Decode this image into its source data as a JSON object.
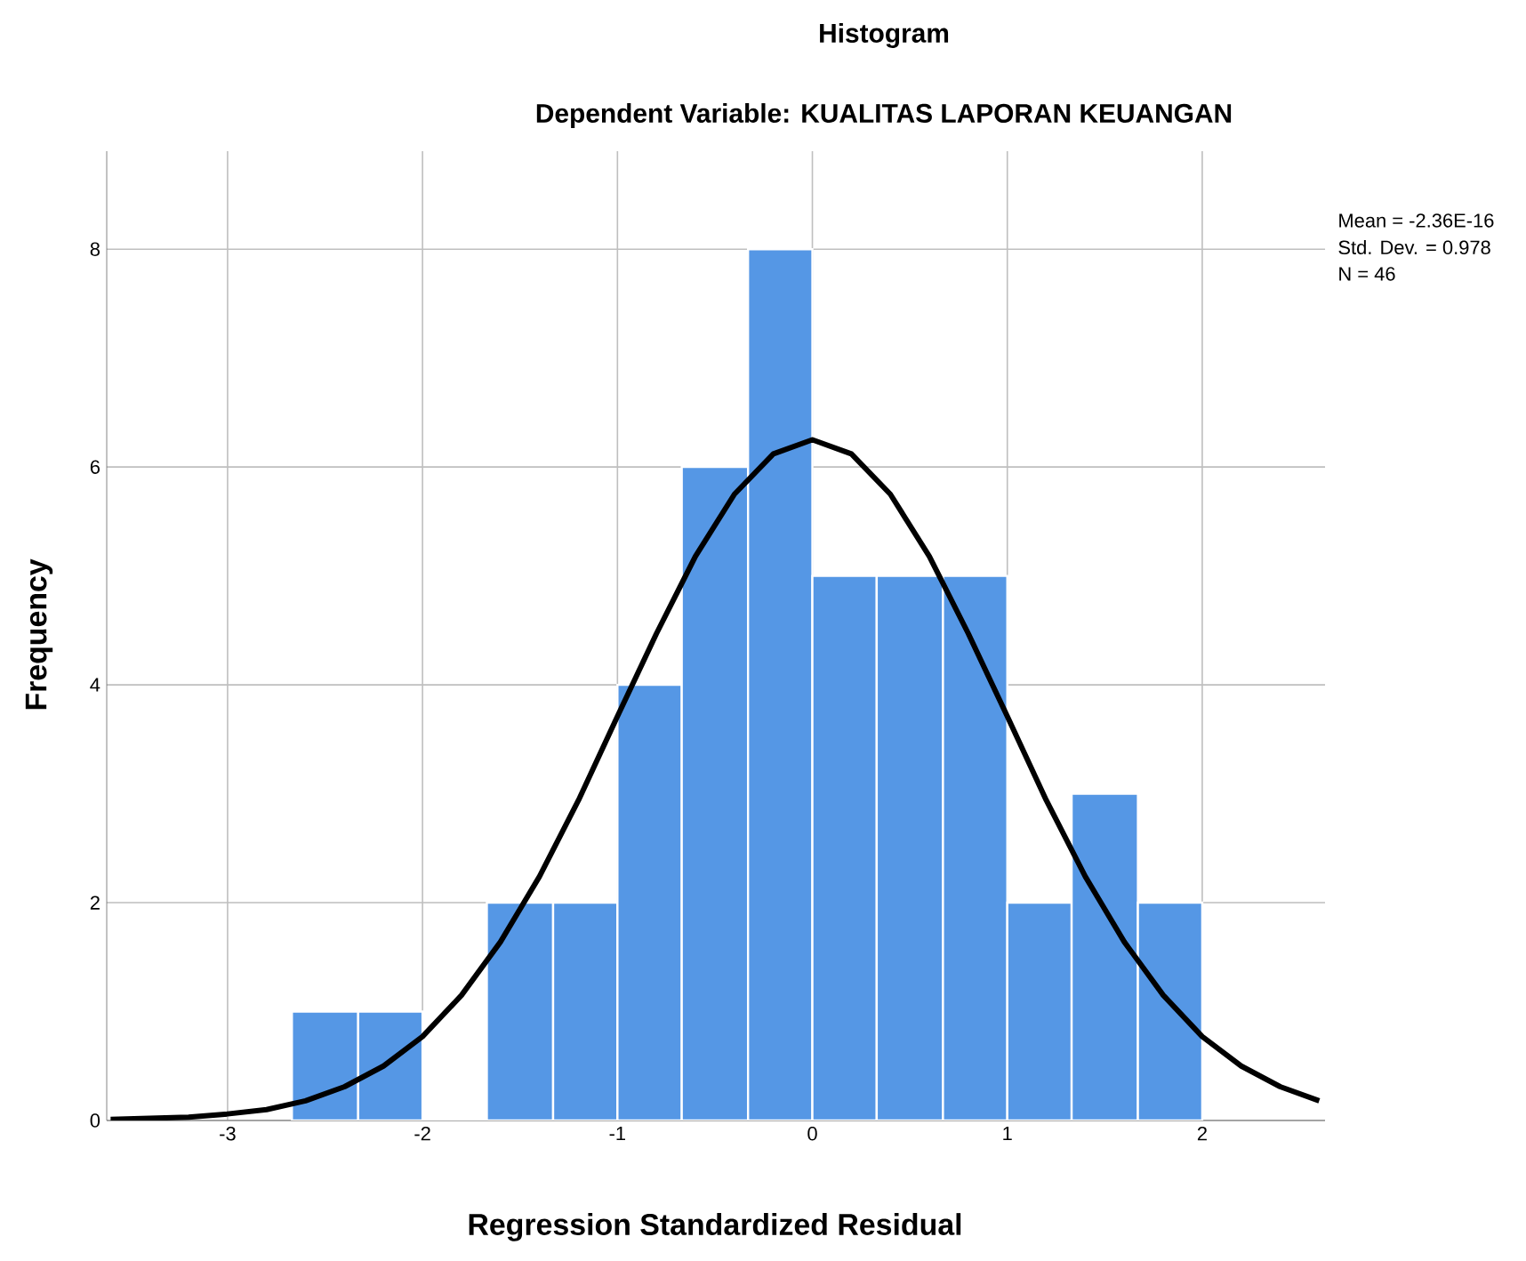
{
  "chart_data": {
    "type": "histogram",
    "title": "Histogram",
    "subtitle": "Dependent Variable: KUALITAS LAPORAN KEUANGAN",
    "xlabel": "Regression Standardized Residual",
    "ylabel": "Frequency",
    "bins": [
      -2.67,
      -2.33,
      -2,
      -1.67,
      -1.33,
      -1,
      -0.67,
      -0.33,
      0,
      0.33,
      0.67,
      1,
      1.33,
      1.67,
      2
    ],
    "values": [
      1,
      1,
      0,
      2,
      2,
      4,
      6,
      8,
      5,
      5,
      5,
      2,
      3,
      2
    ],
    "color": "#5597e5",
    "series": [
      {
        "type": "line",
        "color": "#000000",
        "x": [
          -3.6,
          -3.4,
          -3.2,
          -3.0,
          -2.8,
          -2.6,
          -2.4,
          -2.2,
          -2.0,
          -1.8,
          -1.6,
          -1.4,
          -1.2,
          -1.0,
          -0.8,
          -0.6,
          -0.4,
          -0.2,
          0,
          0.2,
          0.4,
          0.6,
          0.8,
          1.0,
          1.2,
          1.4,
          1.6,
          1.8,
          2.0,
          2.2,
          2.4,
          2.6
        ],
        "values": [
          0.01,
          0.02,
          0.03,
          0.06,
          0.1,
          0.18,
          0.31,
          0.5,
          0.77,
          1.15,
          1.64,
          2.24,
          2.94,
          3.71,
          4.47,
          5.18,
          5.75,
          6.12,
          6.25,
          6.12,
          5.75,
          5.18,
          4.47,
          3.71,
          2.94,
          2.24,
          1.64,
          1.15,
          0.77,
          0.5,
          0.31,
          0.18
        ]
      }
    ],
    "xlim": [
      -3.62,
      2.63
    ],
    "ylim": [
      0,
      8.9
    ],
    "xticks": [
      -3,
      -2,
      -1,
      0,
      1,
      2
    ],
    "yticks": [
      0,
      2,
      4,
      6,
      8
    ],
    "grid": true,
    "annotations": [
      "Mean = -2.36E-16",
      "Std. Dev. = 0.978",
      "N = 46"
    ]
  }
}
